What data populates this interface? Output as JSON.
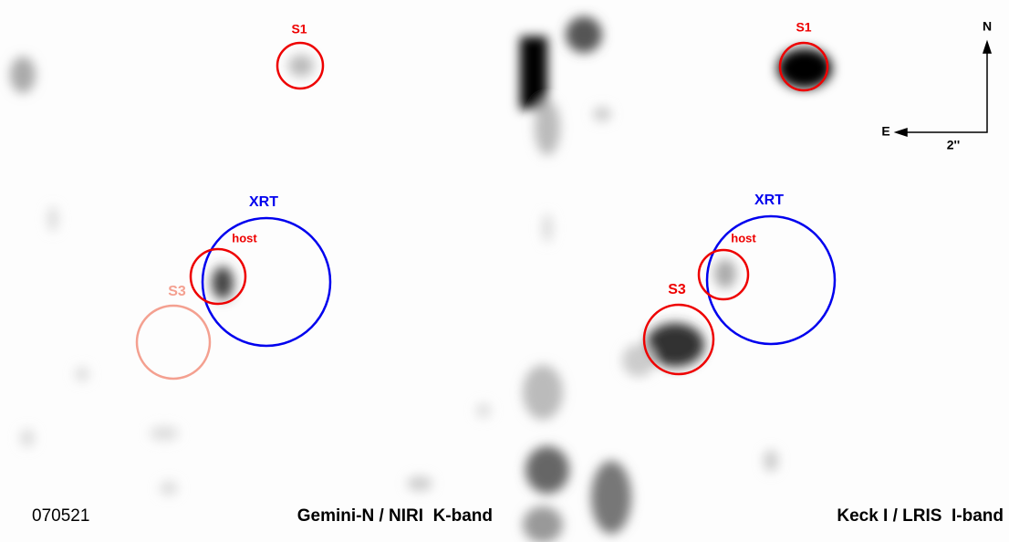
{
  "panels": [
    {
      "labels": {
        "s1": "S1",
        "xrt": "XRT",
        "host": "host",
        "s3": "S3"
      },
      "burst": "070521",
      "instrument": "Gemini-N / NIRI  K-band"
    },
    {
      "labels": {
        "s1": "S1",
        "xrt": "XRT",
        "host": "host",
        "s3": "S3"
      },
      "instrument": "Keck I / LRIS  I-band"
    }
  ],
  "compass": {
    "north": "N",
    "east": "E",
    "scale": "2''"
  }
}
